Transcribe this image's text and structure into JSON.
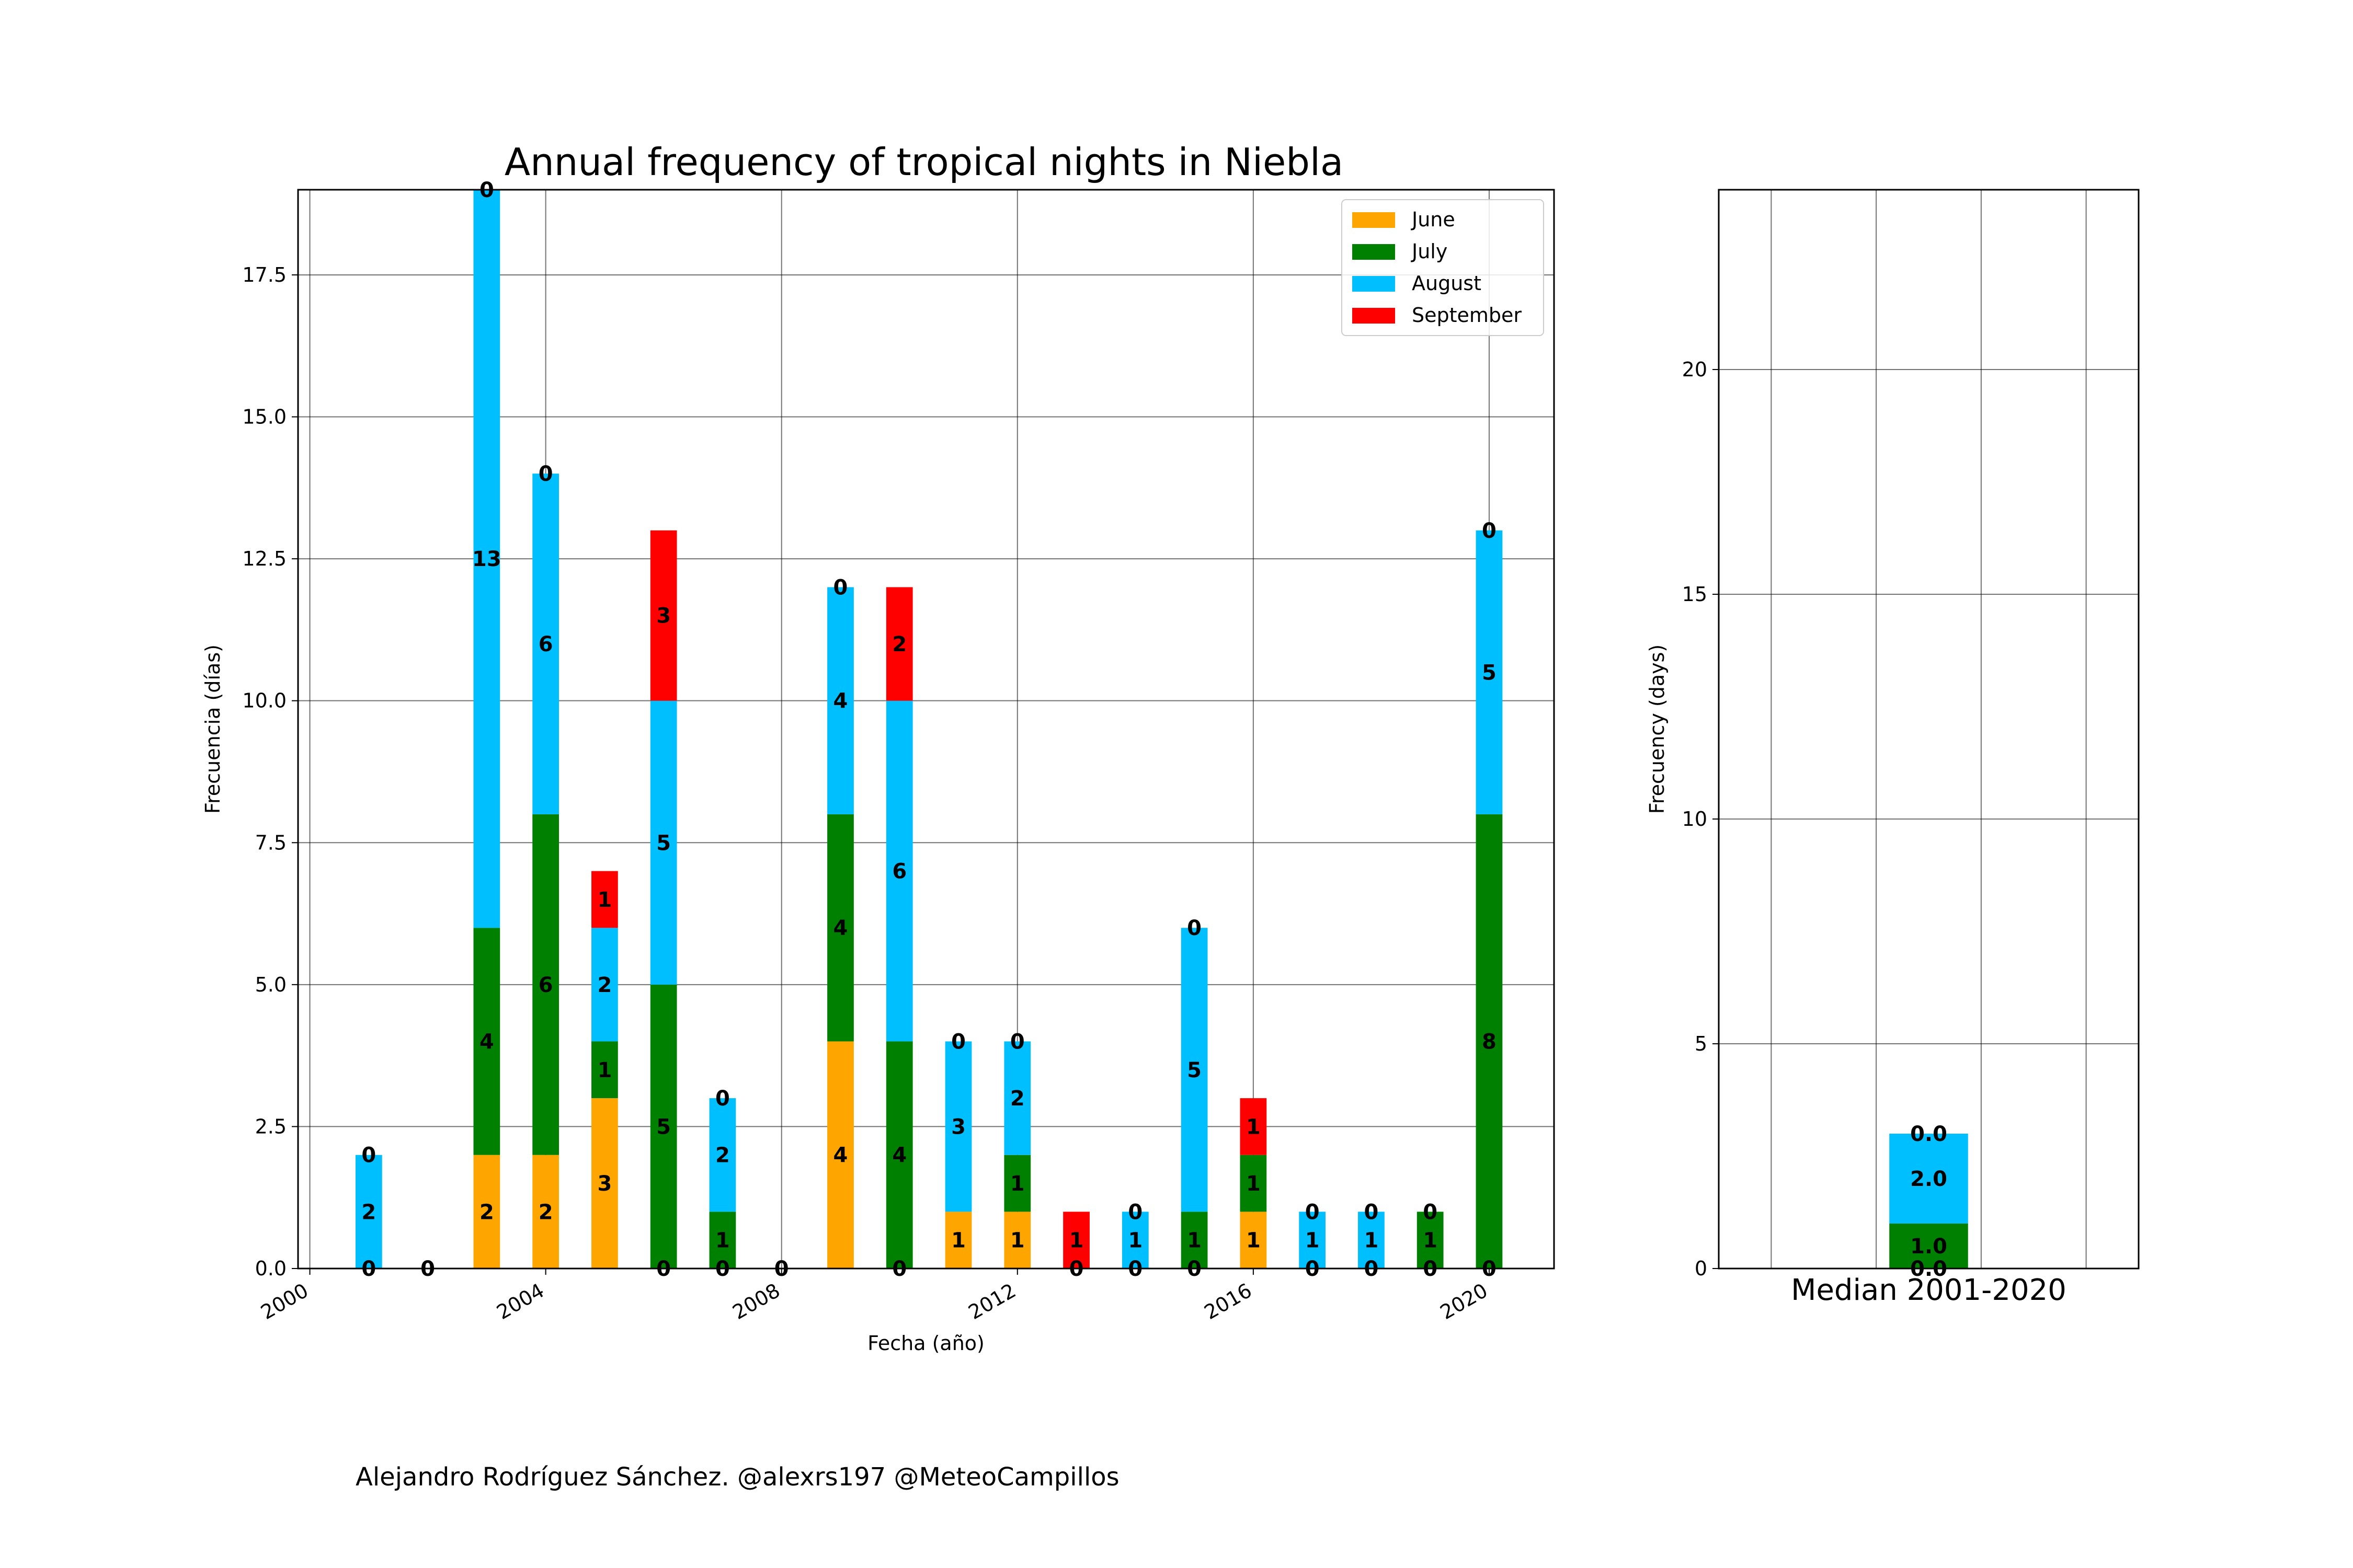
{
  "title": "Annual frequency of tropical nights in Niebla",
  "credit": "Alejandro Rodríguez Sánchez. @alexrs197 @MeteoCampillos",
  "colors": {
    "June": "#ffa500",
    "July": "#008000",
    "August": "#00bfff",
    "September": "#ff0000"
  },
  "chart_data": [
    {
      "type": "bar",
      "stacked": true,
      "xlabel": "Fecha (año)",
      "ylabel": "Frecuencia (días)",
      "xlim": [
        1999.8,
        2021.1
      ],
      "ylim": [
        0,
        19.0
      ],
      "x_ticks": [
        "2000",
        "2004",
        "2008",
        "2012",
        "2016",
        "2020"
      ],
      "y_ticks": [
        "0.0",
        "2.5",
        "5.0",
        "7.5",
        "10.0",
        "12.5",
        "15.0",
        "17.5"
      ],
      "grid": true,
      "legend_position": "top-right",
      "x": [
        2001,
        2002,
        2003,
        2004,
        2005,
        2006,
        2007,
        2008,
        2009,
        2010,
        2011,
        2012,
        2013,
        2014,
        2015,
        2016,
        2017,
        2018,
        2019,
        2020
      ],
      "series": [
        {
          "name": "June",
          "values": [
            0,
            0,
            2,
            2,
            3,
            0,
            0,
            0,
            4,
            0,
            1,
            1,
            0,
            0,
            0,
            1,
            0,
            0,
            0,
            0
          ]
        },
        {
          "name": "July",
          "values": [
            0,
            0,
            4,
            6,
            1,
            5,
            1,
            0,
            4,
            4,
            0,
            1,
            0,
            0,
            1,
            1,
            0,
            0,
            1,
            8
          ]
        },
        {
          "name": "August",
          "values": [
            2,
            0,
            13,
            6,
            2,
            5,
            2,
            0,
            4,
            6,
            3,
            2,
            0,
            1,
            5,
            0,
            1,
            1,
            0,
            5
          ]
        },
        {
          "name": "September",
          "values": [
            0,
            0,
            0,
            0,
            1,
            3,
            0,
            0,
            0,
            2,
            0,
            0,
            1,
            0,
            0,
            1,
            0,
            0,
            0,
            0
          ]
        }
      ]
    },
    {
      "type": "bar",
      "stacked": true,
      "ylabel": "Frecuency (days)",
      "ylim": [
        0,
        24
      ],
      "y_ticks": [
        "0",
        "5",
        "10",
        "15",
        "20"
      ],
      "categories": [
        "Median 2001-2020"
      ],
      "grid": true,
      "series": [
        {
          "name": "June",
          "values": [
            0.0
          ]
        },
        {
          "name": "July",
          "values": [
            1.0
          ]
        },
        {
          "name": "August",
          "values": [
            2.0
          ]
        },
        {
          "name": "September",
          "values": [
            0.0
          ]
        }
      ]
    }
  ]
}
